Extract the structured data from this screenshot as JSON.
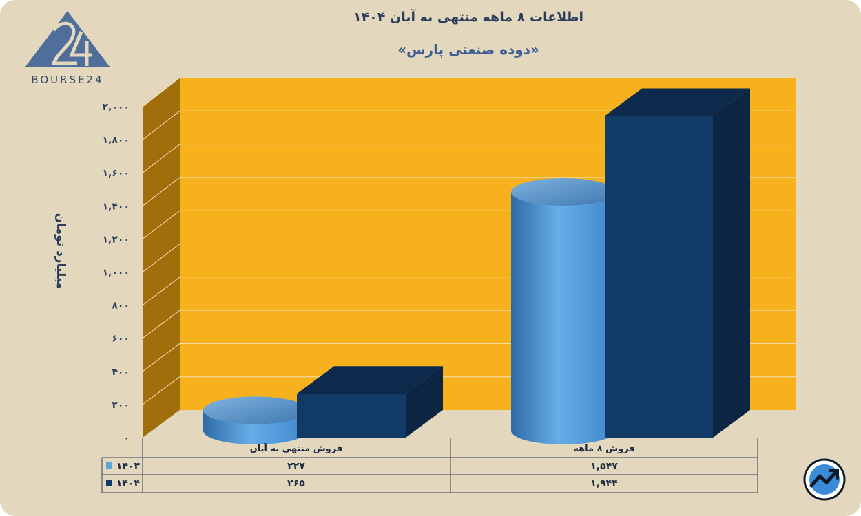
{
  "header": {
    "title": "اطلاعات ۸ ماهه منتهی به آبان ۱۴۰۴",
    "subtitle": "«دوده صنعتی پارس»"
  },
  "brand": {
    "logo_text": "BOURSE24",
    "logo_icon": "bourse24-logo-icon",
    "badge_icon": "trend-arrow-icon"
  },
  "colors": {
    "plot_back": "#f7b11c",
    "plot_side": "#a06f0c",
    "series_1403": "#5aa3e0",
    "series_1404": "#123a66"
  },
  "chart_data": {
    "type": "bar",
    "title": "اطلاعات ۸ ماهه منتهی به آبان ۱۴۰۴",
    "subtitle": "«دوده صنعتی پارس»",
    "ylabel": "میلیارد تومان",
    "ylim": [
      0,
      2000
    ],
    "y_ticks": [
      0,
      200,
      400,
      600,
      800,
      1000,
      1200,
      1400,
      1600,
      1800,
      2000
    ],
    "y_tick_labels": [
      "۰",
      "۲۰۰",
      "۴۰۰",
      "۶۰۰",
      "۸۰۰",
      "۱,۰۰۰",
      "۱,۲۰۰",
      "۱,۴۰۰",
      "۱,۶۰۰",
      "۱,۸۰۰",
      "۲,۰۰۰"
    ],
    "grid": true,
    "categories": [
      "فروش منتهی به  آبان",
      "فروش ۸  ماهه"
    ],
    "series": [
      {
        "name": "۱۴۰۳",
        "values": [
          227,
          1547
        ],
        "value_labels": [
          "۲۲۷",
          "۱,۵۴۷"
        ],
        "shape": "cylinder",
        "color": "#5aa3e0"
      },
      {
        "name": "۱۴۰۴",
        "values": [
          265,
          1944
        ],
        "value_labels": [
          "۲۶۵",
          "۱,۹۴۴"
        ],
        "shape": "box",
        "color": "#123a66"
      }
    ],
    "legend": "data-table"
  }
}
